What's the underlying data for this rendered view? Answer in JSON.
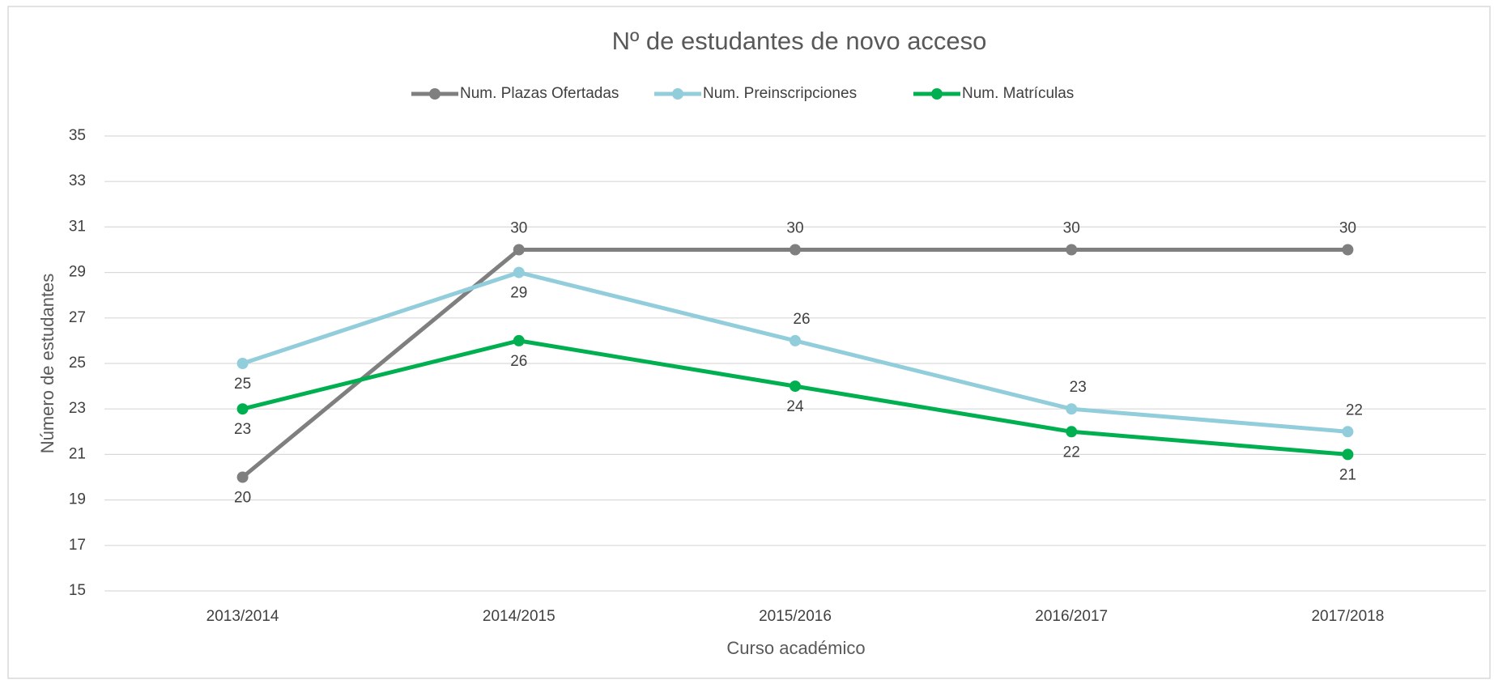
{
  "chart_data": {
    "type": "line",
    "title": "Nº de estudantes de novo acceso",
    "categories": [
      "2013/2014",
      "2014/2015",
      "2015/2016",
      "2016/2017",
      "2017/2018"
    ],
    "series": [
      {
        "name": "Num. Plazas Ofertadas",
        "color": "#7f7f7f",
        "values": [
          20,
          30,
          30,
          30,
          30
        ]
      },
      {
        "name": "Num. Preinscripciones",
        "color": "#92cddc",
        "values": [
          25,
          29,
          26,
          23,
          22
        ]
      },
      {
        "name": "Num. Matrículas",
        "color": "#00b050",
        "values": [
          23,
          26,
          24,
          22,
          21
        ]
      }
    ],
    "ylim": [
      15,
      35
    ],
    "yticks": [
      15,
      17,
      19,
      21,
      23,
      25,
      27,
      29,
      31,
      33,
      35
    ],
    "xlabel": "Curso académico",
    "ylabel": "Número de estudantes",
    "grid": true,
    "legend": "top"
  }
}
